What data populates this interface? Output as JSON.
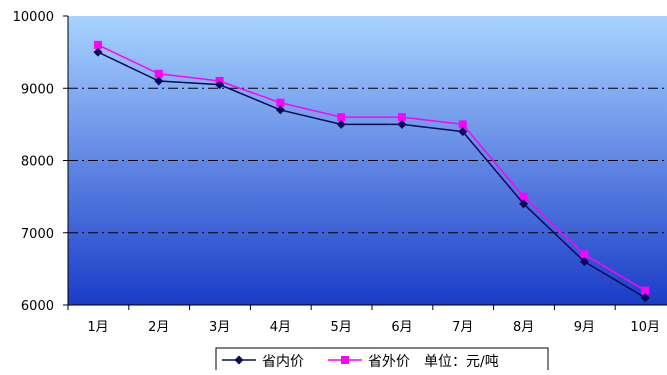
{
  "chart_data": {
    "type": "line",
    "categories": [
      "1月",
      "2月",
      "3月",
      "4月",
      "5月",
      "6月",
      "7月",
      "8月",
      "9月",
      "10月"
    ],
    "series": [
      {
        "name": "省内价",
        "color": "#0a0a5a",
        "marker": "diamond",
        "values": [
          9500,
          9100,
          9050,
          8700,
          8500,
          8500,
          8400,
          7400,
          6600,
          6100
        ]
      },
      {
        "name": "省外价",
        "color": "#ff00ff",
        "marker": "square",
        "values": [
          9600,
          9200,
          9100,
          8800,
          8600,
          8600,
          8500,
          7500,
          6700,
          6200
        ]
      }
    ],
    "yticks": [
      "6000",
      "7000",
      "8000",
      "9000",
      "10000"
    ],
    "ylim": [
      6000,
      10000
    ],
    "grid": "horizontal dash-dot lines at 7000, 8000, 9000",
    "legend_position": "bottom",
    "unit_note": "单位：元/吨",
    "background": {
      "top_color": "#a8d4ff",
      "bottom_color": "#1a3cc8"
    }
  }
}
